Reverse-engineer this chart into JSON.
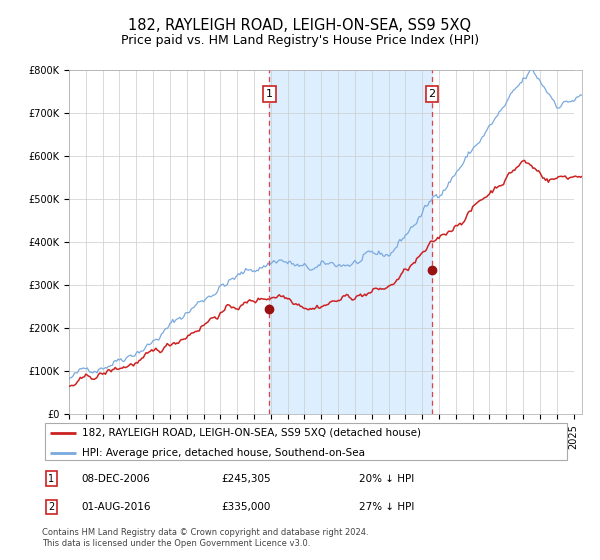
{
  "title": "182, RAYLEIGH ROAD, LEIGH-ON-SEA, SS9 5XQ",
  "subtitle": "Price paid vs. HM Land Registry's House Price Index (HPI)",
  "legend_line1": "182, RAYLEIGH ROAD, LEIGH-ON-SEA, SS9 5XQ (detached house)",
  "legend_line2": "HPI: Average price, detached house, Southend-on-Sea",
  "sale1_date_num": 2006.92,
  "sale1_price": 245305,
  "sale2_date_num": 2016.58,
  "sale2_price": 335000,
  "note1_date": "08-DEC-2006",
  "note1_price": "£245,305",
  "note1_pct": "20% ↓ HPI",
  "note2_date": "01-AUG-2016",
  "note2_price": "£335,000",
  "note2_pct": "27% ↓ HPI",
  "footer": "Contains HM Land Registry data © Crown copyright and database right 2024.\nThis data is licensed under the Open Government Licence v3.0.",
  "hpi_color": "#7aaadd",
  "price_color": "#cc2222",
  "marker_color": "#991111",
  "vline_color": "#dd4444",
  "shade_color": "#ddeeff",
  "ylim": [
    0,
    800000
  ],
  "yticks": [
    0,
    100000,
    200000,
    300000,
    400000,
    500000,
    600000,
    700000,
    800000
  ],
  "xstart": 1995.0,
  "xend": 2025.5,
  "title_fontsize": 10.5,
  "subtitle_fontsize": 9,
  "tick_fontsize": 7,
  "legend_fontsize": 7.5,
  "note_fontsize": 7.5,
  "footer_fontsize": 6
}
